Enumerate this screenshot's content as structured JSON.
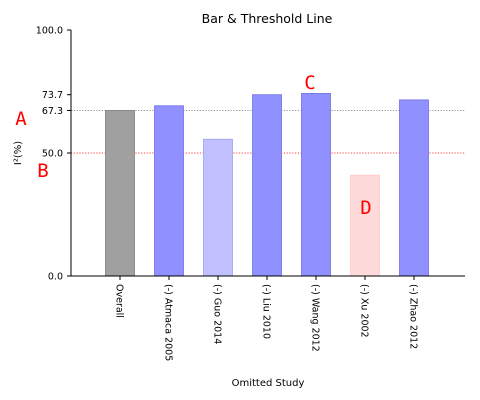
{
  "chart_data": {
    "type": "bar",
    "title": "Bar & Threshold Line",
    "xlabel": "Omitted Study",
    "ylabel": "I²(%)",
    "ylim": [
      0,
      100
    ],
    "yticks": [
      "0.0",
      "50.0",
      "67.3",
      "73.7",
      "100.0"
    ],
    "ytick_values": [
      0,
      50,
      67.3,
      73.7,
      100
    ],
    "categories": [
      "Overall",
      "(-) Atmaca 2005",
      "(-) Guo 2014",
      "(-) Liu 2010",
      "(-) Wang 2012",
      "(-) Xu 2002",
      "(-) Zhao 2012"
    ],
    "values": [
      67.3,
      69.2,
      55.6,
      73.7,
      74.2,
      41.0,
      71.6
    ],
    "bar_colors": [
      "#a0a0a0",
      "#9090ff",
      "#c0c0ff",
      "#9090ff",
      "#9090ff",
      "#ffdada",
      "#9090ff"
    ],
    "bar_edge_colors": [
      "#808080",
      "#7070e0",
      "#a0a0f0",
      "#7070e0",
      "#7070e0",
      "#ffc8c8",
      "#7070e0"
    ],
    "reference_lines": [
      {
        "value": 67.3,
        "color": "#808080",
        "style": "dotted"
      },
      {
        "value": 50.0,
        "color": "#ff0000",
        "style": "dotted"
      }
    ],
    "annotation_markers": [
      "A",
      "B",
      "C",
      "D"
    ],
    "grid": false,
    "legend": "none"
  }
}
